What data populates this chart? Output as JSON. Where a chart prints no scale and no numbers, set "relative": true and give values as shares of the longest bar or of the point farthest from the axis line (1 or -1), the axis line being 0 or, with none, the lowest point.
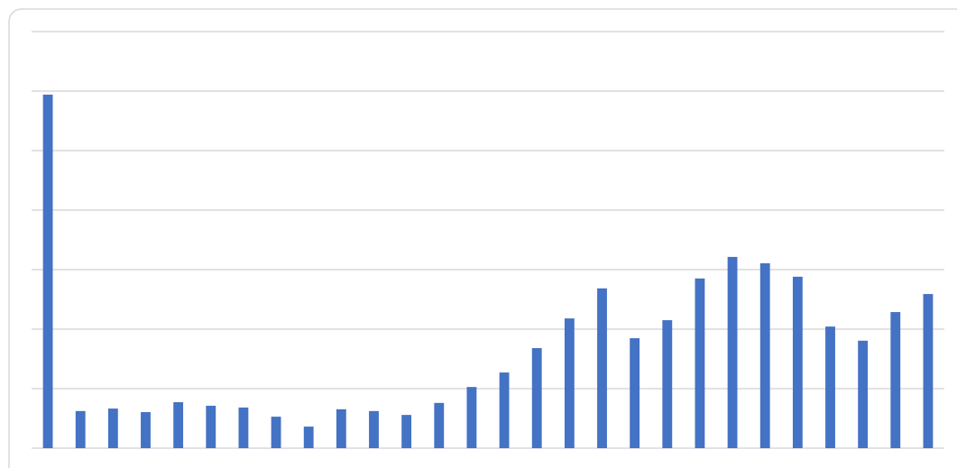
{
  "chart_data": {
    "type": "bar",
    "relative": true,
    "grid": true,
    "color": "#4472c4",
    "categories": [
      null,
      null,
      null,
      null,
      null,
      null,
      null,
      null,
      null,
      null,
      null,
      null,
      null,
      null,
      null,
      null,
      null,
      null,
      null,
      null,
      null,
      null,
      null,
      null,
      null,
      null,
      null,
      null
    ],
    "values": [
      1,
      0.105,
      0.112,
      0.102,
      0.13,
      0.12,
      0.115,
      0.089,
      0.061,
      0.11,
      0.105,
      0.094,
      0.128,
      0.173,
      0.214,
      0.283,
      0.367,
      0.452,
      0.311,
      0.362,
      0.48,
      0.541,
      0.523,
      0.485,
      0.344,
      0.304,
      0.385,
      0.436
    ]
  }
}
